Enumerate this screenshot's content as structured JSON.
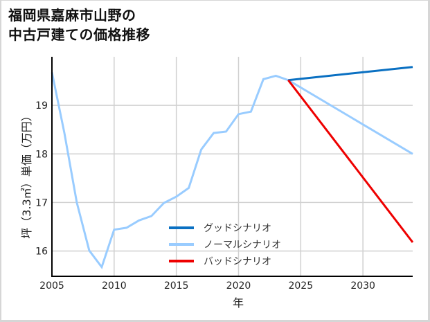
{
  "title": {
    "line1": "福岡県嘉麻市山野の",
    "line2": "中古戸建ての価格推移"
  },
  "colors": {
    "good": "#0a70c2",
    "normal": "#99ccff",
    "bad": "#ee0000",
    "grid": "#d0d0d0",
    "axis": "#000000",
    "frame": "#d6d6d6"
  },
  "chart_data": {
    "type": "line",
    "title": "福岡県嘉麻市山野の中古戸建ての価格推移",
    "xlabel": "年",
    "ylabel": "坪（3.3㎡）単価（万円）",
    "xlim": [
      2005,
      2034
    ],
    "ylim": [
      15.48,
      20.0
    ],
    "x_ticks": [
      2005,
      2010,
      2015,
      2020,
      2025,
      2030
    ],
    "y_ticks": [
      16,
      17,
      18,
      19
    ],
    "grid": true,
    "legend_position": "lower center (inside plot)",
    "series": [
      {
        "name": "グッドシナリオ",
        "color": "#0a70c2",
        "x": [
          2024,
          2034
        ],
        "values": [
          19.52,
          19.79
        ]
      },
      {
        "name": "ノーマルシナリオ",
        "color": "#99ccff",
        "x": [
          2005,
          2006,
          2007,
          2008,
          2009,
          2010,
          2011,
          2012,
          2013,
          2014,
          2015,
          2016,
          2017,
          2018,
          2019,
          2020,
          2021,
          2022,
          2023,
          2024,
          2034
        ],
        "values": [
          19.68,
          18.43,
          17.0,
          16.01,
          15.67,
          16.44,
          16.48,
          16.63,
          16.72,
          16.99,
          17.12,
          17.3,
          18.09,
          18.43,
          18.46,
          18.82,
          18.87,
          19.54,
          19.61,
          19.52,
          18.0
        ]
      },
      {
        "name": "バッドシナリオ",
        "color": "#ee0000",
        "x": [
          2024,
          2034
        ],
        "values": [
          19.52,
          16.18
        ]
      }
    ]
  },
  "legend": [
    {
      "label": "グッドシナリオ",
      "color": "#0a70c2"
    },
    {
      "label": "ノーマルシナリオ",
      "color": "#99ccff"
    },
    {
      "label": "バッドシナリオ",
      "color": "#ee0000"
    }
  ]
}
